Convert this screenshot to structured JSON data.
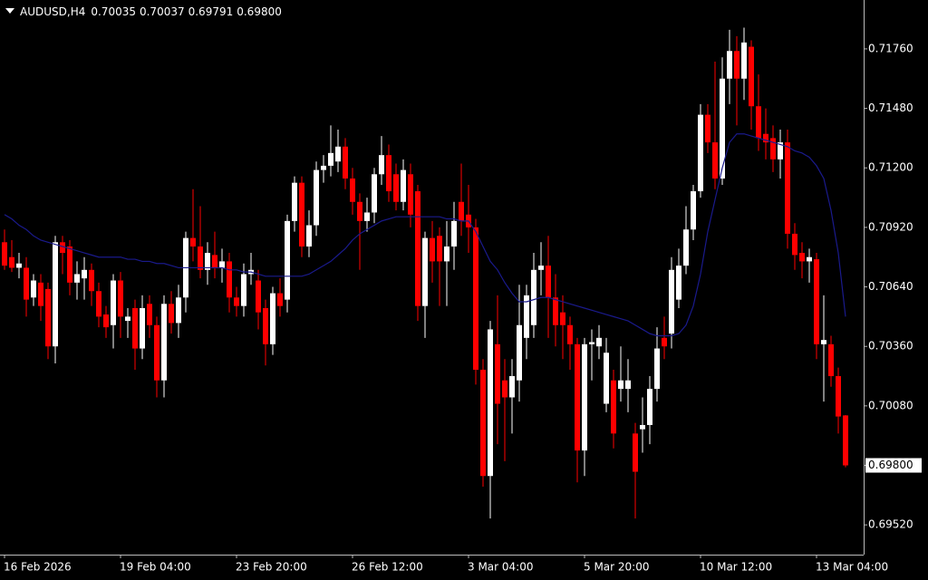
{
  "chart_data": {
    "type": "candlestick",
    "title": "AUDUSD,H4",
    "header_quote": [
      "0.70035",
      "0.70037",
      "0.69791",
      "0.69800"
    ],
    "up_color": "#ffffff",
    "down_color": "#ff0000",
    "categories": [
      "16 Feb 2026",
      null,
      null,
      null,
      null,
      null,
      null,
      null,
      null,
      null,
      null,
      null,
      null,
      null,
      null,
      null,
      "19 Feb 04:00",
      null,
      null,
      null,
      null,
      null,
      null,
      null,
      null,
      null,
      null,
      null,
      null,
      null,
      null,
      null,
      "23 Feb 20:00",
      null,
      null,
      null,
      null,
      null,
      null,
      null,
      null,
      null,
      null,
      null,
      null,
      null,
      null,
      null,
      "26 Feb 12:00",
      null,
      null,
      null,
      null,
      null,
      null,
      null,
      null,
      null,
      null,
      null,
      null,
      null,
      null,
      null,
      "3 Mar 04:00",
      null,
      null,
      null,
      null,
      null,
      null,
      null,
      null,
      null,
      null,
      null,
      null,
      null,
      null,
      null,
      "5 Mar 20:00",
      null,
      null,
      null,
      null,
      null,
      null,
      null,
      null,
      null,
      null,
      null,
      null,
      null,
      null,
      null,
      "10 Mar 12:00",
      null,
      null,
      null,
      null,
      null,
      null,
      null,
      null,
      null,
      null,
      null,
      null,
      null,
      null,
      null,
      "13 Mar 04:00",
      null,
      null,
      null,
      null
    ],
    "open": [
      0.7085,
      0.7078,
      0.7073,
      0.7073,
      0.7059,
      0.7066,
      0.7063,
      0.7036,
      0.7085,
      0.7083,
      0.7066,
      0.7068,
      0.7072,
      0.7062,
      0.7051,
      0.7046,
      0.7067,
      0.7048,
      0.7054,
      0.7035,
      0.7056,
      0.7046,
      0.702,
      0.7056,
      0.7047,
      0.7059,
      0.7087,
      0.7083,
      0.7072,
      0.7079,
      0.7073,
      0.7076,
      0.7059,
      0.7055,
      0.707,
      0.7067,
      0.7054,
      0.7037,
      0.7061,
      0.7058,
      0.7095,
      0.7113,
      0.7083,
      0.7093,
      0.7119,
      0.7121,
      0.7123,
      0.713,
      0.7115,
      0.7104,
      0.7095,
      0.7099,
      0.7117,
      0.7126,
      0.7117,
      0.7104,
      0.7117,
      0.7109,
      0.7055,
      0.7087,
      0.7088,
      0.7076,
      0.7083,
      0.7104,
      0.7098,
      0.7092,
      0.7025,
      0.6975,
      0.7037,
      0.702,
      0.7012,
      0.702,
      0.704,
      0.7046,
      0.7072,
      0.7074,
      0.7059,
      0.7052,
      0.7046,
      0.7037,
      0.6987,
      0.7037,
      0.7036,
      0.7009,
      0.702,
      0.7016,
      0.7016,
      0.6995,
      0.6997,
      0.6999,
      0.7016,
      0.704,
      0.7042,
      0.7058,
      0.7074,
      0.7091,
      0.7109,
      0.7145,
      0.7132,
      0.7115,
      0.7162,
      0.7175,
      0.7162,
      0.7177,
      0.7149,
      0.7136,
      0.7134,
      0.7124,
      0.7132,
      0.7089,
      0.708,
      0.7076,
      0.7077,
      0.7037,
      0.7037,
      0.7022,
      0.70035
    ],
    "high": [
      0.7091,
      0.7086,
      0.708,
      0.7078,
      0.707,
      0.707,
      0.7066,
      0.7088,
      0.7088,
      0.7086,
      0.7076,
      0.7078,
      0.7075,
      0.7066,
      0.7055,
      0.707,
      0.7071,
      0.7054,
      0.7058,
      0.706,
      0.706,
      0.705,
      0.706,
      0.7062,
      0.7065,
      0.709,
      0.711,
      0.7102,
      0.7085,
      0.709,
      0.7082,
      0.708,
      0.7064,
      0.7075,
      0.708,
      0.7072,
      0.7058,
      0.7064,
      0.7068,
      0.7098,
      0.7116,
      0.7116,
      0.71,
      0.7123,
      0.7126,
      0.714,
      0.7138,
      0.7134,
      0.712,
      0.7108,
      0.7106,
      0.712,
      0.7135,
      0.7131,
      0.7122,
      0.7124,
      0.7122,
      0.7112,
      0.709,
      0.7095,
      0.7092,
      0.7095,
      0.7104,
      0.7122,
      0.7112,
      0.7096,
      0.703,
      0.7048,
      0.706,
      0.703,
      0.703,
      0.7065,
      0.7065,
      0.708,
      0.7085,
      0.7088,
      0.707,
      0.706,
      0.705,
      0.704,
      0.704,
      0.7044,
      0.7046,
      0.704,
      0.7025,
      0.7036,
      0.703,
      0.7,
      0.7012,
      0.7022,
      0.7045,
      0.705,
      0.7078,
      0.7082,
      0.7102,
      0.7112,
      0.715,
      0.715,
      0.717,
      0.7172,
      0.7185,
      0.7182,
      0.7186,
      0.718,
      0.7164,
      0.7148,
      0.714,
      0.7138,
      0.7138,
      0.7094,
      0.7085,
      0.7082,
      0.708,
      0.706,
      0.7041,
      0.7026,
      0.70037
    ],
    "low": [
      0.7072,
      0.7071,
      0.7068,
      0.705,
      0.7055,
      0.7048,
      0.703,
      0.7028,
      0.707,
      0.706,
      0.7058,
      0.7058,
      0.7055,
      0.7045,
      0.704,
      0.7035,
      0.704,
      0.704,
      0.7025,
      0.703,
      0.704,
      0.7012,
      0.7012,
      0.7042,
      0.704,
      0.7052,
      0.7076,
      0.7068,
      0.7065,
      0.7068,
      0.7066,
      0.7052,
      0.705,
      0.705,
      0.7065,
      0.7044,
      0.7027,
      0.7032,
      0.705,
      0.7052,
      0.709,
      0.7078,
      0.7078,
      0.7088,
      0.7113,
      0.7116,
      0.7118,
      0.711,
      0.7098,
      0.7072,
      0.709,
      0.7094,
      0.7112,
      0.7104,
      0.71,
      0.71,
      0.7092,
      0.7048,
      0.704,
      0.7066,
      0.7055,
      0.7055,
      0.7072,
      0.7088,
      0.708,
      0.7018,
      0.697,
      0.6955,
      0.699,
      0.6982,
      0.6995,
      0.701,
      0.703,
      0.704,
      0.706,
      0.704,
      0.7036,
      0.703,
      0.7025,
      0.6972,
      0.6975,
      0.702,
      0.703,
      0.7005,
      0.6988,
      0.701,
      0.7005,
      0.6955,
      0.6986,
      0.699,
      0.701,
      0.703,
      0.7035,
      0.7054,
      0.707,
      0.7086,
      0.7106,
      0.7127,
      0.711,
      0.7112,
      0.715,
      0.714,
      0.7152,
      0.7138,
      0.7128,
      0.7124,
      0.7118,
      0.7115,
      0.7082,
      0.7072,
      0.7068,
      0.7066,
      0.703,
      0.701,
      0.7017,
      0.6995,
      0.69791
    ],
    "close": [
      0.7074,
      0.7073,
      0.7075,
      0.7058,
      0.7067,
      0.7055,
      0.7036,
      0.7085,
      0.708,
      0.7066,
      0.707,
      0.7072,
      0.7062,
      0.705,
      0.7045,
      0.7067,
      0.705,
      0.705,
      0.7035,
      0.7054,
      0.7046,
      0.702,
      0.7056,
      0.7047,
      0.7059,
      0.7087,
      0.7083,
      0.7072,
      0.708,
      0.7073,
      0.7076,
      0.7059,
      0.7055,
      0.707,
      0.7072,
      0.7052,
      0.7037,
      0.7061,
      0.7055,
      0.7095,
      0.7113,
      0.7083,
      0.7093,
      0.7119,
      0.7121,
      0.7127,
      0.713,
      0.7115,
      0.7104,
      0.7095,
      0.7099,
      0.7117,
      0.7126,
      0.7109,
      0.7104,
      0.7119,
      0.7098,
      0.7055,
      0.7087,
      0.7076,
      0.7076,
      0.7083,
      0.7095,
      0.7095,
      0.7092,
      0.7025,
      0.6975,
      0.7044,
      0.7009,
      0.7012,
      0.7022,
      0.7046,
      0.706,
      0.7072,
      0.7074,
      0.7059,
      0.7046,
      0.7046,
      0.7037,
      0.6987,
      0.7037,
      0.7038,
      0.704,
      0.7033,
      0.6995,
      0.702,
      0.702,
      0.6977,
      0.6999,
      0.7016,
      0.7035,
      0.7036,
      0.7072,
      0.7074,
      0.7091,
      0.7109,
      0.7145,
      0.7132,
      0.7115,
      0.7162,
      0.7175,
      0.7162,
      0.7179,
      0.7149,
      0.7134,
      0.7132,
      0.7124,
      0.7132,
      0.7089,
      0.7079,
      0.7076,
      0.7078,
      0.7037,
      0.7039,
      0.7022,
      0.7003,
      0.698
    ],
    "moving_average": {
      "color": "#1a1a8c",
      "values": [
        0.7098,
        0.7096,
        0.7093,
        0.7091,
        0.7088,
        0.7086,
        0.7085,
        0.7084,
        0.7083,
        0.7082,
        0.7081,
        0.708,
        0.7079,
        0.7078,
        0.7078,
        0.7078,
        0.7078,
        0.7077,
        0.7077,
        0.7076,
        0.7076,
        0.7075,
        0.7075,
        0.7074,
        0.7073,
        0.7073,
        0.7073,
        0.7073,
        0.7073,
        0.7073,
        0.7073,
        0.7072,
        0.7072,
        0.7071,
        0.7071,
        0.707,
        0.7069,
        0.7069,
        0.7069,
        0.7069,
        0.7069,
        0.7069,
        0.707,
        0.7072,
        0.7074,
        0.7076,
        0.7079,
        0.7082,
        0.7086,
        0.7089,
        0.7091,
        0.7093,
        0.7095,
        0.7096,
        0.7097,
        0.7097,
        0.7097,
        0.7097,
        0.7097,
        0.7097,
        0.7097,
        0.7096,
        0.7096,
        0.7095,
        0.7095,
        0.709,
        0.7083,
        0.7076,
        0.7072,
        0.7066,
        0.7061,
        0.7057,
        0.7057,
        0.7058,
        0.7059,
        0.7059,
        0.7058,
        0.7057,
        0.7056,
        0.7055,
        0.7054,
        0.7053,
        0.7052,
        0.7051,
        0.705,
        0.7049,
        0.7048,
        0.7046,
        0.7044,
        0.7042,
        0.7041,
        0.7041,
        0.7041,
        0.7042,
        0.7046,
        0.7055,
        0.707,
        0.709,
        0.7105,
        0.712,
        0.7132,
        0.7136,
        0.7136,
        0.7135,
        0.7134,
        0.7133,
        0.7132,
        0.7131,
        0.713,
        0.7128,
        0.7127,
        0.7125,
        0.7121,
        0.7115,
        0.71,
        0.708,
        0.705
      ]
    },
    "current_price": {
      "value": 0.698,
      "label": "0.69800"
    },
    "ylim": [
      0.6938,
      0.7199
    ],
    "yticks": [
      {
        "value": 0.6952,
        "label": "0.69520"
      },
      {
        "value": 0.698,
        "label": "0.69800"
      },
      {
        "value": 0.7008,
        "label": "0.70080"
      },
      {
        "value": 0.7036,
        "label": "0.70360"
      },
      {
        "value": 0.7064,
        "label": "0.70640"
      },
      {
        "value": 0.7092,
        "label": "0.70920"
      },
      {
        "value": 0.712,
        "label": "0.71200"
      },
      {
        "value": 0.7148,
        "label": "0.71480"
      },
      {
        "value": 0.7176,
        "label": "0.71760"
      }
    ],
    "grid": false
  }
}
